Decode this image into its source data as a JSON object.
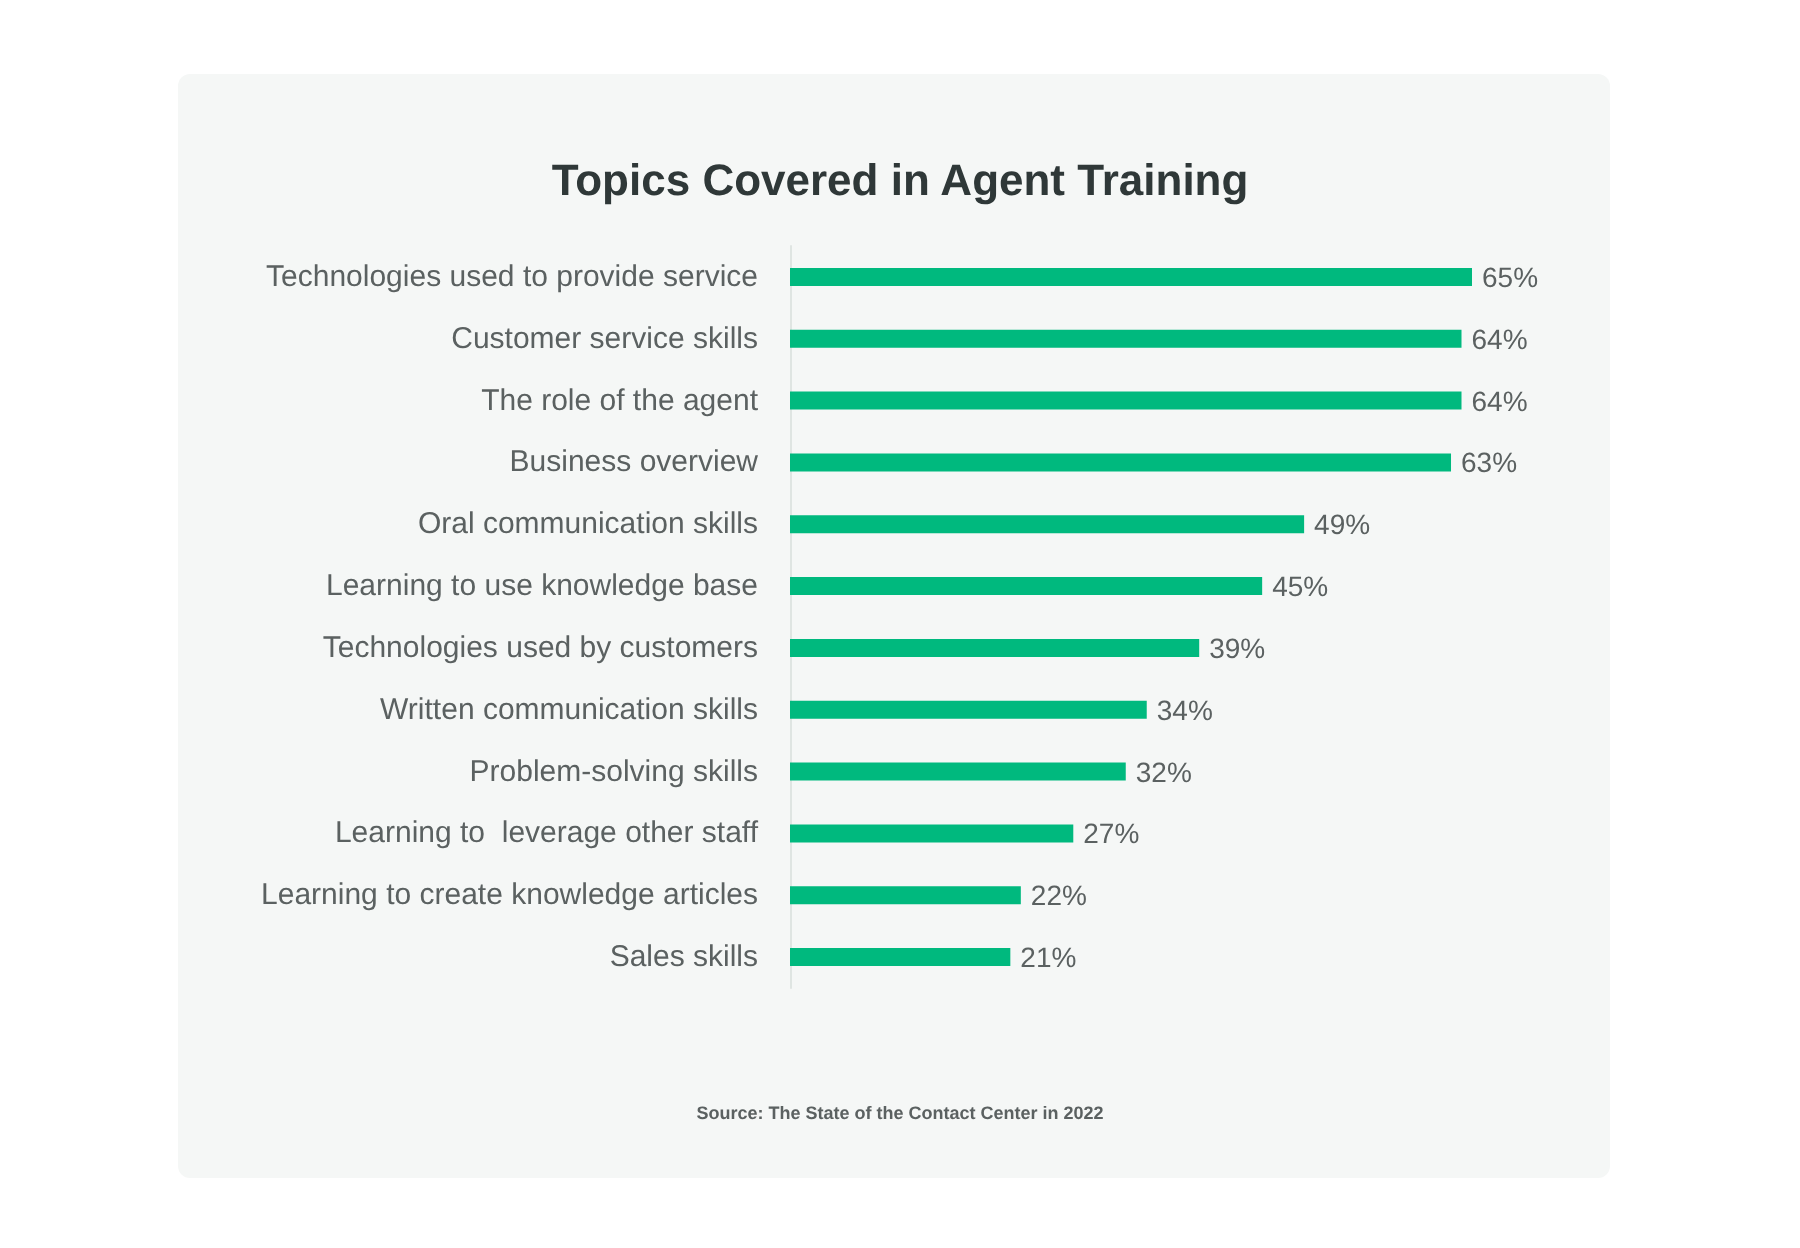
{
  "chart_data": {
    "type": "bar",
    "orientation": "horizontal",
    "title": "Topics Covered in Agent Training",
    "categories": [
      "Technologies used to provide service",
      "Customer service skills",
      "The role of the agent",
      "Business overview",
      "Oral communication skills",
      "Learning to use knowledge base",
      "Technologies used by customers",
      "Written communication skills",
      "Problem-solving skills",
      "Learning to  leverage other staff",
      "Learning to create knowledge articles",
      "Sales skills"
    ],
    "values": [
      65,
      64,
      64,
      63,
      49,
      45,
      39,
      34,
      32,
      27,
      22,
      21
    ],
    "value_labels": [
      "65%",
      "64%",
      "64%",
      "63%",
      "49%",
      "45%",
      "39%",
      "34%",
      "32%",
      "27%",
      "22%",
      "21%"
    ],
    "color": "#00b97e",
    "tick_labels": "y",
    "annotations": [
      "Source: The State of the Contact Center in 2022"
    ]
  }
}
